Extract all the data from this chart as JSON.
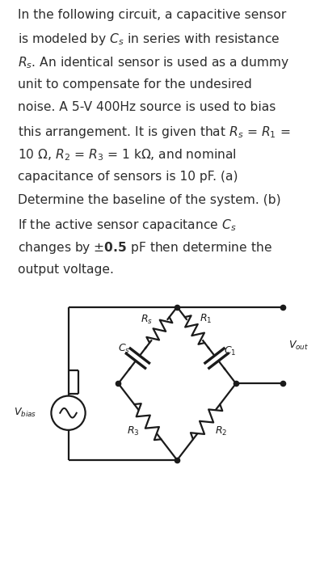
{
  "background_color": "#ffffff",
  "text_color": "#2d2d2d",
  "line_color": "#1a1a1a",
  "text_fontsize": 11.2,
  "circuit_fontsize": 9.0,
  "fig_width": 4.02,
  "fig_height": 7.0,
  "dpi": 100,
  "text_lines": [
    "In the following circuit, a capacitive sensor",
    "is modeled by $C_s$ in series with resistance",
    "$R_s$. An identical sensor is used as a dummy",
    "unit to compensate for the undesired",
    "noise. A 5-V 400Hz source is used to bias",
    "this arrangement. It is given that $R_s$ = $R_1$ =",
    "10 $\\Omega$, $R_2$ = $R_3$ = 1 k$\\Omega$, and nominal",
    "capacitance of sensors is 10 pF. (a)",
    "Determine the baseline of the system. (b)",
    "If the active sensor capacitance $C_s$",
    "changes by $\\pm\\mathbf{0.5}$ pF then determine the",
    "output voltage."
  ]
}
